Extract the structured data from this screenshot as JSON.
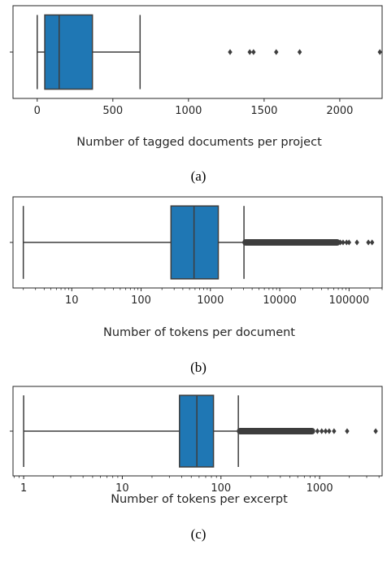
{
  "chart_data": [
    {
      "type": "boxplot",
      "xlabel": "Number of tagged documents per project",
      "caption": "(a)",
      "xscale": "linear",
      "xlim": [
        -160,
        2280
      ],
      "xticks": [
        0,
        500,
        1000,
        1500,
        2000
      ],
      "xtick_labels": [
        "0",
        "500",
        "1000",
        "1500",
        "2000"
      ],
      "whisker_low": 0,
      "q1": 50,
      "median": 145,
      "q3": 365,
      "whisker_high": 680,
      "outliers": [
        1275,
        1405,
        1430,
        1580,
        1735,
        2265
      ],
      "box_color": "#1f77b4"
    },
    {
      "type": "boxplot",
      "xlabel": "Number of tokens per document",
      "caption": "(b)",
      "xscale": "log",
      "xlim": [
        1.42,
        300000
      ],
      "xticks": [
        10,
        100,
        1000,
        10000,
        100000
      ],
      "xtick_labels": [
        "10",
        "100",
        "1000",
        "10000",
        "100000"
      ],
      "whisker_low": 2,
      "q1": 270,
      "median": 580,
      "q3": 1300,
      "whisker_high": 3050,
      "outlier_band": [
        3100,
        70000
      ],
      "outliers": [
        75000,
        82000,
        92000,
        100000,
        130000,
        190000,
        215000
      ],
      "box_color": "#1f77b4"
    },
    {
      "type": "boxplot",
      "xlabel": "Number of tokens per excerpt",
      "caption": "(c)",
      "xscale": "log",
      "xlim": [
        0.78,
        4300
      ],
      "xticks": [
        1,
        10,
        100,
        1000
      ],
      "xtick_labels": [
        "1",
        "10",
        "100",
        "1000"
      ],
      "whisker_low": 1,
      "q1": 38,
      "median": 57,
      "q3": 84,
      "whisker_high": 150,
      "outlier_band": [
        152,
        860
      ],
      "outliers": [
        950,
        1050,
        1150,
        1250,
        1400,
        1900,
        3700
      ],
      "box_color": "#1f77b4"
    }
  ]
}
